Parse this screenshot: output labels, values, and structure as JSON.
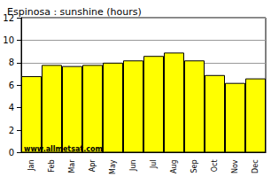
{
  "chart_data": {
    "type": "bar",
    "title": "Espinosa : sunshine (hours)",
    "categories": [
      "Jan",
      "Feb",
      "Mar",
      "Apr",
      "May",
      "Jun",
      "Jul",
      "Aug",
      "Sep",
      "Oct",
      "Nov",
      "Dec"
    ],
    "values": [
      6.8,
      7.8,
      7.7,
      7.8,
      8.0,
      8.2,
      8.6,
      8.9,
      8.2,
      6.9,
      6.2,
      6.6
    ],
    "color": "#ffff00",
    "ylim": [
      0,
      12
    ],
    "yticks": [
      0,
      2,
      4,
      6,
      8,
      10,
      12
    ],
    "grid": true,
    "annotation": "www.allmetsat.com"
  }
}
